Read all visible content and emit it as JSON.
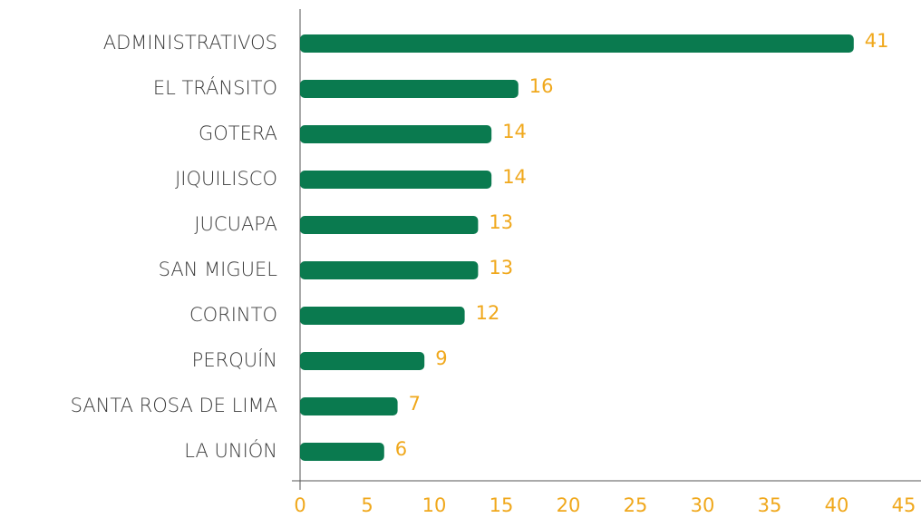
{
  "chart_data": {
    "type": "barh",
    "categories": [
      "ADMINISTRATIVOS",
      "EL TRÁNSITO",
      "GOTERA",
      "JIQUILISCO",
      "JUCUAPA",
      "SAN MIGUEL",
      "CORINTO",
      "PERQUÍN",
      "SANTA ROSA DE LIMA",
      "LA UNIÓN"
    ],
    "values": [
      41,
      16,
      14,
      14,
      13,
      13,
      12,
      9,
      7,
      6
    ],
    "color": "#0a7a4f",
    "xlim": [
      0,
      45
    ],
    "xticks": [
      0,
      5,
      10,
      15,
      20,
      25,
      30,
      35,
      40,
      45
    ]
  }
}
